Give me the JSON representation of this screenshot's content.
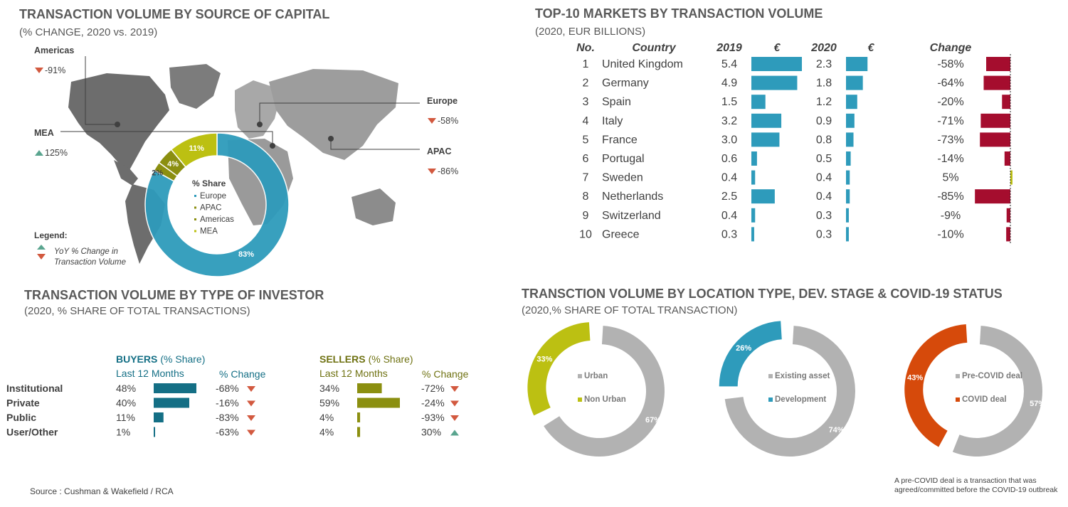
{
  "source": "Source : Cushman & Wakefield / RCA",
  "footnote": [
    "A pre-COVID deal is a transaction that was",
    "agreed/committed before the COVID-19 outbreak"
  ],
  "capital": {
    "title": "TRANSACTION VOLUME BY SOURCE OF CAPITAL",
    "subtitle": "(% CHANGE, 2020 vs. 2019)",
    "regions": [
      {
        "name": "Americas",
        "change": "-91%",
        "dir": "down"
      },
      {
        "name": "Europe",
        "change": "-58%",
        "dir": "down"
      },
      {
        "name": "MEA",
        "change": "125%",
        "dir": "up"
      },
      {
        "name": "APAC",
        "change": "-86%",
        "dir": "down"
      }
    ],
    "legend_title": "Legend:",
    "legend_line1": "YoY % Change in",
    "legend_line2": "Transaction Volume"
  },
  "markets": {
    "title": "TOP-10 MARKETS BY TRANSACTION VOLUME",
    "subtitle": "(2020, EUR BILLIONS)",
    "headers": {
      "no": "No.",
      "country": "Country",
      "y2019": "2019",
      "euro1": "€",
      "y2020": "2020",
      "euro2": "€",
      "change": "Change"
    }
  },
  "investor": {
    "title": "TRANSACTION VOLUME BY TYPE OF INVESTOR",
    "subtitle": "(2020, % SHARE OF TOTAL TRANSACTIONS)",
    "buyers_label": "BUYERS",
    "sellers_label": "SELLERS",
    "share_label": "(% Share)",
    "last12": "Last 12 Months",
    "pct_change": "% Change"
  },
  "location": {
    "title": "TRANSCTION VOLUME BY LOCATION TYPE, DEV. STAGE & COVID-19 STATUS",
    "subtitle": "(2020,% SHARE OF TOTAL TRANSACTION)"
  },
  "colors": {
    "teal": "#2e9bbb",
    "darkteal": "#146f85",
    "crimson": "#a50d2e",
    "lime": "#bcc012",
    "olive": "#8b8f10",
    "grey": "#b2b2b2",
    "orange": "#d64a0b",
    "darkgrey": "#555555",
    "up": "#5aa58f",
    "down": "#d2593f"
  },
  "chart_data": [
    {
      "type": "pie",
      "title": "% Share",
      "categories": [
        "Europe",
        "APAC",
        "Americas",
        "MEA"
      ],
      "values": [
        83,
        2,
        4,
        11
      ],
      "labels": [
        "83%",
        "2%",
        "4%",
        "11%"
      ]
    },
    {
      "type": "table",
      "rows": [
        {
          "no": "1",
          "country": "United Kingdom",
          "v2019": 5.4,
          "v2020": 2.3,
          "change": -58,
          "change_label": "-58%"
        },
        {
          "no": "2",
          "country": "Germany",
          "v2019": 4.9,
          "v2020": 1.8,
          "change": -64,
          "change_label": "-64%"
        },
        {
          "no": "3",
          "country": "Spain",
          "v2019": 1.5,
          "v2020": 1.2,
          "change": -20,
          "change_label": "-20%"
        },
        {
          "no": "4",
          "country": "Italy",
          "v2019": 3.2,
          "v2020": 0.9,
          "change": -71,
          "change_label": "-71%"
        },
        {
          "no": "5",
          "country": "France",
          "v2019": 3.0,
          "v2020": 0.8,
          "change": -73,
          "change_label": "-73%"
        },
        {
          "no": "6",
          "country": "Portugal",
          "v2019": 0.6,
          "v2020": 0.5,
          "change": -14,
          "change_label": "-14%"
        },
        {
          "no": "7",
          "country": "Sweden",
          "v2019": 0.4,
          "v2020": 0.4,
          "change": 5,
          "change_label": "5%"
        },
        {
          "no": "8",
          "country": "Netherlands",
          "v2019": 2.5,
          "v2020": 0.4,
          "change": -85,
          "change_label": "-85%"
        },
        {
          "no": "9",
          "country": "Switzerland",
          "v2019": 0.4,
          "v2020": 0.3,
          "change": -9,
          "change_label": "-9%"
        },
        {
          "no": "10",
          "country": "Greece",
          "v2019": 0.3,
          "v2020": 0.3,
          "change": -10,
          "change_label": "-10%"
        }
      ]
    },
    {
      "type": "bar",
      "categories": [
        "Institutional",
        "Private",
        "Public",
        "User/Other"
      ],
      "series": [
        {
          "name": "BUYERS",
          "values": [
            48,
            40,
            11,
            1
          ],
          "labels": [
            "48%",
            "40%",
            "11%",
            "1%"
          ],
          "change": [
            "-68%",
            "-16%",
            "-83%",
            "-63%"
          ],
          "dir": [
            "down",
            "down",
            "down",
            "down"
          ]
        },
        {
          "name": "SELLERS",
          "values": [
            34,
            59,
            4,
            4
          ],
          "labels": [
            "34%",
            "59%",
            "4%",
            "4%"
          ],
          "change": [
            "-72%",
            "-24%",
            "-93%",
            "30%"
          ],
          "dir": [
            "down",
            "down",
            "down",
            "up"
          ]
        }
      ]
    },
    {
      "type": "pie",
      "categories": [
        "Urban",
        "Non Urban"
      ],
      "values": [
        67,
        33
      ],
      "labels": [
        "67%",
        "33%"
      ]
    },
    {
      "type": "pie",
      "categories": [
        "Existing asset",
        "Development"
      ],
      "values": [
        74,
        26
      ],
      "labels": [
        "74%",
        "26%"
      ]
    },
    {
      "type": "pie",
      "categories": [
        "Pre-COVID deal",
        "COVID deal"
      ],
      "values": [
        57,
        43
      ],
      "labels": [
        "57%",
        "43%"
      ]
    }
  ]
}
